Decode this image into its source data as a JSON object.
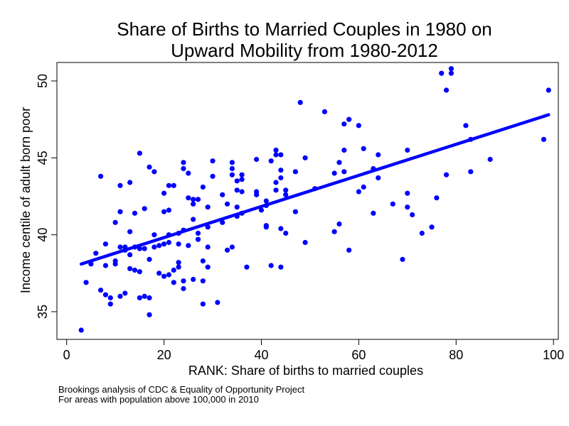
{
  "chart_data": {
    "type": "scatter",
    "title_line1": "Share of Births to Married Couples in 1980 on",
    "title_line2": "Upward Mobility from 1980-2012",
    "xlabel": "RANK: Share of births to married couples",
    "ylabel": "Income centile of adult born poor",
    "xlim": [
      -2,
      101
    ],
    "ylim": [
      33.2,
      51.2
    ],
    "xticks": [
      0,
      20,
      40,
      60,
      80,
      100
    ],
    "yticks": [
      35,
      40,
      45,
      50
    ],
    "grid": false,
    "colors": {
      "points": "#0000ff",
      "fit_line": "#0000ff",
      "axis": "#000000"
    },
    "fit_line": {
      "x": [
        3,
        99
      ],
      "y": [
        38.1,
        47.8
      ]
    },
    "points": [
      [
        3,
        33.8
      ],
      [
        4,
        36.9
      ],
      [
        5,
        38.1
      ],
      [
        6,
        38.8
      ],
      [
        7,
        43.8
      ],
      [
        7,
        36.4
      ],
      [
        8,
        39.4
      ],
      [
        8,
        38.0
      ],
      [
        8,
        36.1
      ],
      [
        9,
        35.9
      ],
      [
        9,
        35.5
      ],
      [
        10,
        40.8
      ],
      [
        10,
        38.1
      ],
      [
        10,
        38.3
      ],
      [
        11,
        41.5
      ],
      [
        11,
        39.2
      ],
      [
        11,
        43.2
      ],
      [
        11,
        36.0
      ],
      [
        12,
        39.2
      ],
      [
        12,
        39.0
      ],
      [
        12,
        36.2
      ],
      [
        13,
        43.4
      ],
      [
        13,
        40.2
      ],
      [
        13,
        38.7
      ],
      [
        13,
        37.8
      ],
      [
        14,
        39.2
      ],
      [
        14,
        41.4
      ],
      [
        14,
        37.7
      ],
      [
        15,
        45.3
      ],
      [
        15,
        39.1
      ],
      [
        15,
        37.6
      ],
      [
        15,
        35.9
      ],
      [
        16,
        41.7
      ],
      [
        16,
        39.1
      ],
      [
        16,
        36.0
      ],
      [
        17,
        44.4
      ],
      [
        17,
        38.4
      ],
      [
        17,
        35.9
      ],
      [
        17,
        34.8
      ],
      [
        18,
        44.1
      ],
      [
        18,
        39.2
      ],
      [
        18,
        40.0
      ],
      [
        19,
        39.3
      ],
      [
        19,
        37.5
      ],
      [
        20,
        42.7
      ],
      [
        20,
        41.5
      ],
      [
        20,
        39.4
      ],
      [
        20,
        37.3
      ],
      [
        21,
        43.2
      ],
      [
        21,
        41.6
      ],
      [
        21,
        40.0
      ],
      [
        21,
        37.4
      ],
      [
        21,
        39.5
      ],
      [
        22,
        43.2
      ],
      [
        22,
        37.7
      ],
      [
        22,
        36.9
      ],
      [
        23,
        40.1
      ],
      [
        23,
        39.4
      ],
      [
        23,
        38.2
      ],
      [
        23,
        37.9
      ],
      [
        24,
        44.7
      ],
      [
        24,
        44.3
      ],
      [
        24,
        40.3
      ],
      [
        24,
        37.0
      ],
      [
        24,
        36.5
      ],
      [
        25,
        44.0
      ],
      [
        25,
        42.4
      ],
      [
        25,
        39.3
      ],
      [
        26,
        42.3
      ],
      [
        26,
        41.0
      ],
      [
        26,
        37.1
      ],
      [
        26,
        42.0
      ],
      [
        27,
        42.3
      ],
      [
        27,
        40.1
      ],
      [
        27,
        39.7
      ],
      [
        28,
        43.1
      ],
      [
        28,
        38.3
      ],
      [
        28,
        37.0
      ],
      [
        28,
        35.5
      ],
      [
        29,
        41.8
      ],
      [
        29,
        40.5
      ],
      [
        29,
        39.2
      ],
      [
        29,
        37.9
      ],
      [
        30,
        44.8
      ],
      [
        30,
        43.8
      ],
      [
        31,
        35.6
      ],
      [
        32,
        42.6
      ],
      [
        32,
        40.8
      ],
      [
        33,
        42.0
      ],
      [
        33,
        39.0
      ],
      [
        34,
        44.7
      ],
      [
        34,
        44.3
      ],
      [
        34,
        43.9
      ],
      [
        34,
        39.2
      ],
      [
        35,
        43.5
      ],
      [
        35,
        42.9
      ],
      [
        35,
        41.8
      ],
      [
        35,
        41.2
      ],
      [
        36,
        43.9
      ],
      [
        36,
        43.6
      ],
      [
        36,
        42.8
      ],
      [
        36,
        41.4
      ],
      [
        37,
        37.9
      ],
      [
        39,
        44.9
      ],
      [
        39,
        42.8
      ],
      [
        39,
        42.6
      ],
      [
        40,
        41.6
      ],
      [
        41,
        42.2
      ],
      [
        41,
        41.9
      ],
      [
        41,
        40.6
      ],
      [
        41,
        40.5
      ],
      [
        42,
        44.8
      ],
      [
        42,
        38.0
      ],
      [
        43,
        45.5
      ],
      [
        43,
        45.2
      ],
      [
        43,
        42.9
      ],
      [
        43,
        43.4
      ],
      [
        44,
        45.2
      ],
      [
        44,
        44.2
      ],
      [
        44,
        43.7
      ],
      [
        44,
        40.4
      ],
      [
        44,
        37.9
      ],
      [
        45,
        42.9
      ],
      [
        45,
        42.6
      ],
      [
        45,
        40.1
      ],
      [
        47,
        44.1
      ],
      [
        47,
        41.5
      ],
      [
        48,
        48.6
      ],
      [
        49,
        45.0
      ],
      [
        49,
        39.5
      ],
      [
        51,
        43.0
      ],
      [
        53,
        48.0
      ],
      [
        55,
        44.0
      ],
      [
        55,
        40.2
      ],
      [
        56,
        44.7
      ],
      [
        56,
        40.7
      ],
      [
        57,
        45.5
      ],
      [
        57,
        44.1
      ],
      [
        57,
        47.2
      ],
      [
        58,
        47.5
      ],
      [
        58,
        39.0
      ],
      [
        60,
        47.1
      ],
      [
        60,
        42.8
      ],
      [
        61,
        45.6
      ],
      [
        61,
        43.1
      ],
      [
        63,
        44.3
      ],
      [
        63,
        41.4
      ],
      [
        64,
        45.2
      ],
      [
        64,
        43.7
      ],
      [
        67,
        42.0
      ],
      [
        69,
        38.4
      ],
      [
        70,
        45.5
      ],
      [
        70,
        42.7
      ],
      [
        70,
        41.8
      ],
      [
        71,
        41.3
      ],
      [
        73,
        40.1
      ],
      [
        75,
        40.5
      ],
      [
        76,
        42.4
      ],
      [
        77,
        50.5
      ],
      [
        78,
        49.4
      ],
      [
        78,
        43.9
      ],
      [
        79,
        50.8
      ],
      [
        79,
        50.5
      ],
      [
        82,
        47.1
      ],
      [
        83,
        46.2
      ],
      [
        83,
        44.1
      ],
      [
        87,
        44.9
      ],
      [
        98,
        46.2
      ],
      [
        99,
        49.4
      ]
    ]
  },
  "footnote": {
    "line1": "Brookings analysis of CDC & Equality of Opportunity Project",
    "line2": "For areas with population above 100,000 in 2010"
  }
}
